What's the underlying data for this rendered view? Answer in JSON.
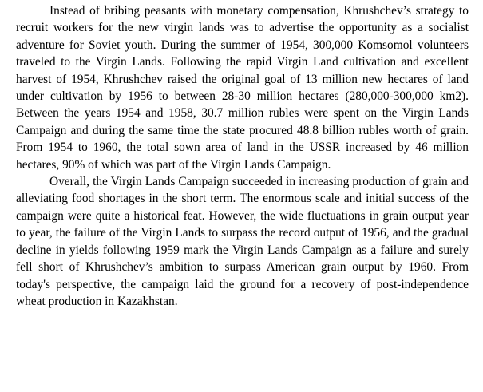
{
  "document": {
    "paragraphs": [
      "Instead of bribing peasants with monetary compensation, Khrushchev’s strategy to recruit workers for the new virgin lands was to advertise the opportunity as a socialist adventure for Soviet youth. During the summer of 1954, 300,000 Komsomol volunteers traveled to the Virgin Lands. Following the rapid Virgin Land cultivation and excellent harvest of 1954, Khrushchev raised the original goal of 13 million new hectares of land under cultivation by 1956 to between 28-30 million hectares (280,000-300,000 km2). Between the years 1954 and 1958, 30.7 million rubles were spent on the Virgin Lands Campaign and during the same time the state procured 48.8 billion rubles worth of grain. From 1954 to 1960, the total sown area of land in the USSR increased by 46 million hectares, 90% of which was part of the Virgin Lands Campaign.",
      "Overall, the Virgin Lands Campaign succeeded in increasing production of grain and alleviating food shortages in the short term. The enormous scale and initial success of the campaign were quite a historical feat. However, the wide fluctuations in grain output year to year, the failure of the Virgin Lands to surpass the record output of 1956, and the gradual decline in yields following 1959 mark the Virgin Lands Campaign as a failure and surely fell short of Khrushchev’s ambition to surpass American grain output by 1960. From today's perspective, the campaign laid the ground for a recovery of post-independence wheat production in Kazakhstan."
    ]
  }
}
